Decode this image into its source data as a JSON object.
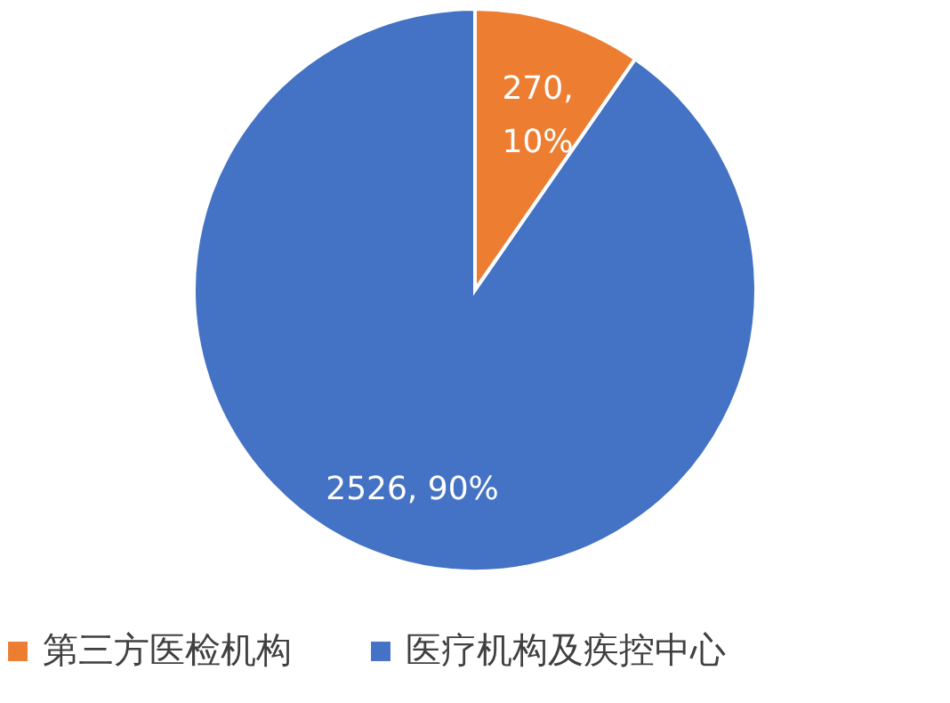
{
  "chart_data": {
    "type": "pie",
    "categories": [
      "第三方医检机构",
      "医疗机构及疾控中心"
    ],
    "values": [
      270,
      2526
    ],
    "colors": [
      "#ed7d31",
      "#4472c4"
    ],
    "value_labels": [
      "270, 10%",
      "2526, 90%"
    ],
    "legend": "bottom"
  }
}
